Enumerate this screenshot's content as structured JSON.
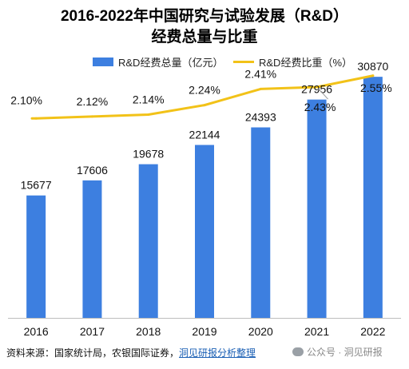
{
  "chart_data": {
    "type": "bar",
    "title": "2016-2022年中国研究与试验发展（R&D）",
    "subtitle": "经费总量与比重",
    "categories": [
      "2016",
      "2017",
      "2018",
      "2019",
      "2020",
      "2021",
      "2022"
    ],
    "series": [
      {
        "name": "R&D经费总量（亿元）",
        "type": "bar",
        "color": "#3d7fe0",
        "values": [
          15677,
          17606,
          19678,
          22144,
          24393,
          27956,
          30870
        ]
      },
      {
        "name": "R&D经费比重（%）",
        "type": "line",
        "color": "#f2c218",
        "values": [
          2.1,
          2.12,
          2.14,
          2.24,
          2.41,
          2.43,
          2.55
        ]
      }
    ],
    "bar_labels": [
      "15677",
      "17606",
      "19678",
      "22144",
      "24393",
      "27956",
      "30870"
    ],
    "line_labels": [
      "2.10%",
      "2.12%",
      "2.14%",
      "2.24%",
      "2.41%",
      "2.43%",
      "2.55%"
    ],
    "ylim_left": [
      0,
      31500
    ],
    "ylim_right": [
      0,
      2.59
    ],
    "grid": false,
    "legend_position": "top"
  },
  "footer": {
    "source_text": "资料来源：国家统计局，农银国际证券，",
    "source_link": "洞见研报分析整理"
  },
  "watermark": "公众号 · 洞见研报"
}
